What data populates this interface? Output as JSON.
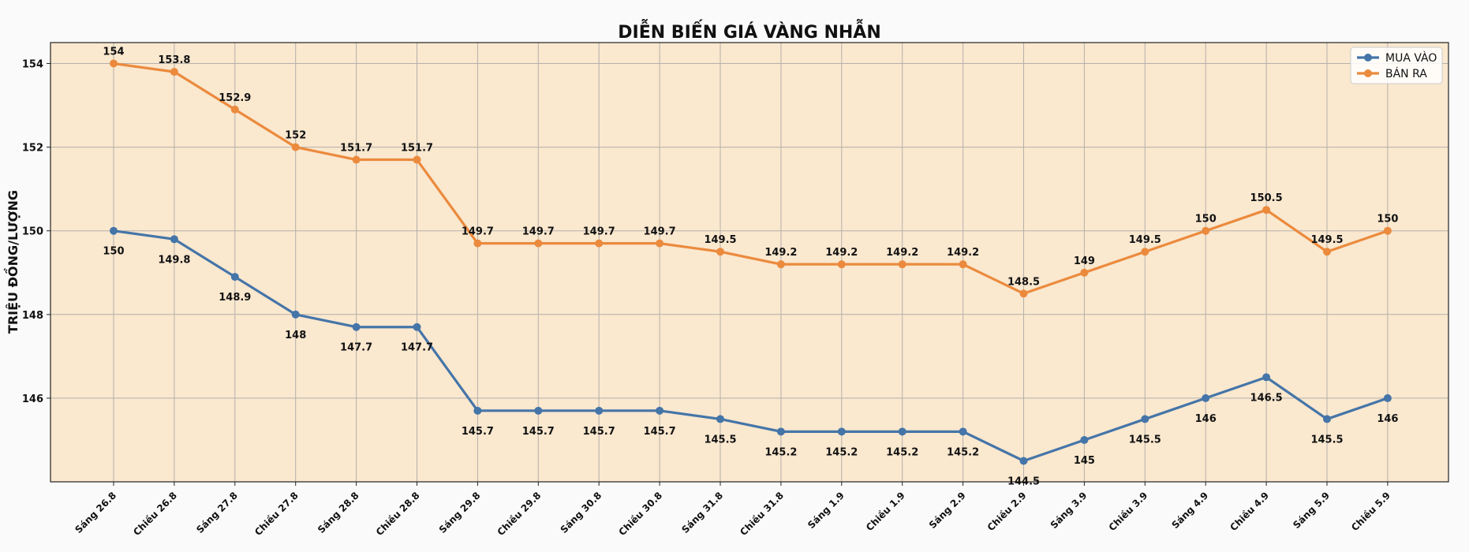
{
  "chart_data": {
    "type": "line",
    "title": "DIỄN BIẾN GIÁ VÀNG NHẪN",
    "xlabel": "",
    "ylabel": "TRIỆU ĐỒNG/LƯỢNG",
    "categories": [
      "Sáng 26.8",
      "Chiều 26.8",
      "Sáng 27.8",
      "Chiều 27.8",
      "Sáng 28.8",
      "Chiều 28.8",
      "Sáng 29.8",
      "Chiều 29.8",
      "Sáng 30.8",
      "Chiều 30.8",
      "Sáng 31.8",
      "Chiều 31.8",
      "Sáng 1.9",
      "Chiều 1.9",
      "Sáng 2.9",
      "Chiều 2.9",
      "Sáng 3.9",
      "Chiều 3.9",
      "Sáng 4.9",
      "Chiều 4.9",
      "Sáng 5.9",
      "Chiều 5.9"
    ],
    "series": [
      {
        "name": "MUA VÀO",
        "color": "#4575a8",
        "label_position": "below",
        "values": [
          150,
          149.8,
          148.9,
          148,
          147.7,
          147.7,
          145.7,
          145.7,
          145.7,
          145.7,
          145.5,
          145.2,
          145.2,
          145.2,
          145.2,
          144.5,
          145,
          145.5,
          146,
          146.5,
          145.5,
          146
        ]
      },
      {
        "name": "BÁN RA",
        "color": "#eb8a3d",
        "label_position": "above",
        "values": [
          154,
          153.8,
          152.9,
          152,
          151.7,
          151.7,
          149.7,
          149.7,
          149.7,
          149.7,
          149.5,
          149.2,
          149.2,
          149.2,
          149.2,
          148.5,
          149,
          149.5,
          150,
          150.5,
          149.5,
          150
        ]
      }
    ],
    "ylim": [
      144.0,
      154.5
    ],
    "yticks": [
      146,
      148,
      150,
      152,
      154
    ],
    "grid": true,
    "legend": "top-right",
    "plot_background": "#fae8cf"
  }
}
